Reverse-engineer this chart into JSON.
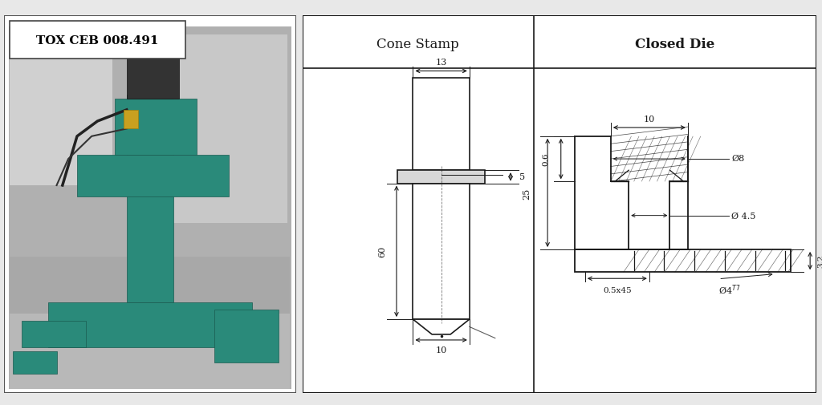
{
  "bg_color": "#e8e8e8",
  "photo_label": "TOX CEB 008.491",
  "left_panel_title": "Cone Stamp",
  "right_panel_title": "Closed Die",
  "line_color": "#1a1a1a",
  "dim_color": "#1a1a1a",
  "photo_gray_bg": "#c8c8c8",
  "photo_white_bg": "#e0e0e0",
  "photo_teal": "#2a8a7a",
  "panel_bg": "#f5f5f5"
}
